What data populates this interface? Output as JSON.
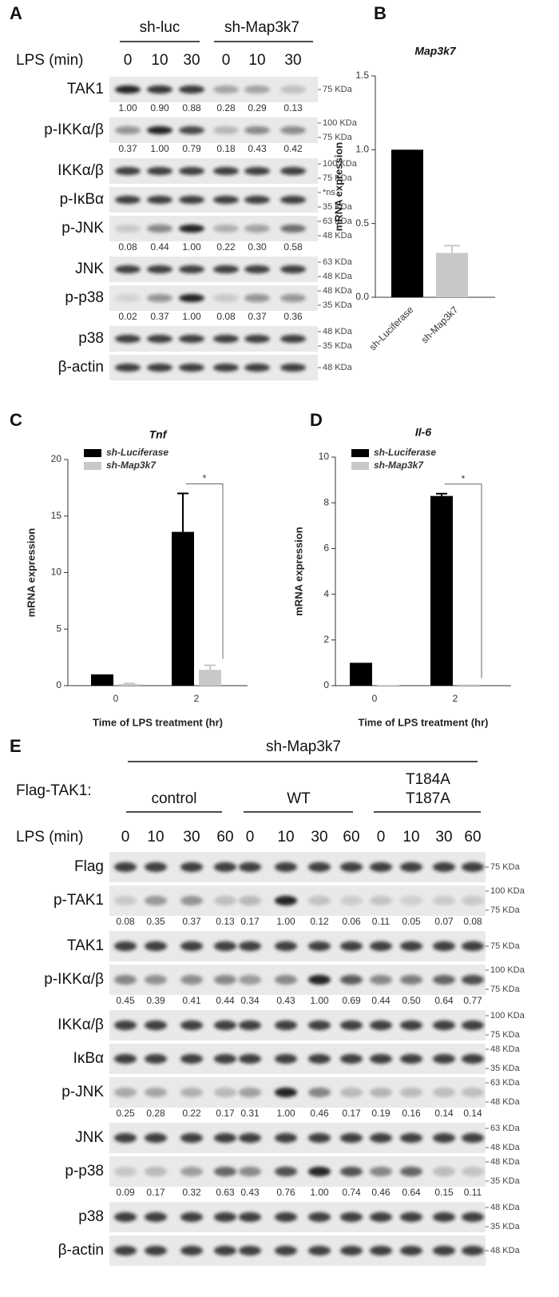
{
  "panel_labels": [
    "A",
    "B",
    "C",
    "D",
    "E"
  ],
  "blot_a": {
    "groups": [
      "sh-luc",
      "sh-Map3k7"
    ],
    "lps_label": "LPS (min)",
    "lanes": [
      "0",
      "10",
      "30",
      "0",
      "10",
      "30"
    ],
    "rows": [
      {
        "label": "TAK1",
        "quant": [
          "1.00",
          "0.90",
          "0.88",
          "0.28",
          "0.29",
          "0.13"
        ],
        "markers": [
          "75 KDa"
        ]
      },
      {
        "label": "p-IKKα/β",
        "quant": [
          "0.37",
          "1.00",
          "0.79",
          "0.18",
          "0.43",
          "0.42"
        ],
        "markers": [
          "100 KDa",
          "75 KDa"
        ]
      },
      {
        "label": "IKKα/β",
        "markers": [
          "100 KDa",
          "75 KDa"
        ]
      },
      {
        "label": "p-IκBα",
        "markers": [
          "*ns",
          "35 KDa"
        ]
      },
      {
        "label": "p-JNK",
        "quant": [
          "0.08",
          "0.44",
          "1.00",
          "0.22",
          "0.30",
          "0.58"
        ],
        "markers": [
          "63 KDa",
          "48 KDa"
        ]
      },
      {
        "label": "JNK",
        "markers": [
          "63 KDa",
          "48 KDa"
        ]
      },
      {
        "label": "p-p38",
        "quant": [
          "0.02",
          "0.37",
          "1.00",
          "0.08",
          "0.37",
          "0.36"
        ],
        "markers": [
          "48 KDa",
          "35 KDa"
        ]
      },
      {
        "label": "p38",
        "markers": [
          "48 KDa",
          "35 KDa"
        ]
      },
      {
        "label": "β-actin",
        "markers": [
          "48 KDa"
        ]
      }
    ]
  },
  "chart_data": [
    {
      "type": "bar",
      "title": "Map3k7",
      "ylabel": "mRNA expression",
      "categories": [
        "sh-Luciferase",
        "sh-Map3k7"
      ],
      "values": [
        1.0,
        0.3
      ],
      "errors": [
        null,
        0.05
      ],
      "colors": [
        "#000000",
        "#c8c8c8"
      ],
      "ylim": [
        0,
        1.5
      ],
      "yticks": [
        {
          "value": 0,
          "label": "0.0"
        },
        {
          "value": 0.5,
          "label": "0.5"
        },
        {
          "value": 1,
          "label": "1.0"
        },
        {
          "value": 1.5,
          "label": "1.5"
        }
      ]
    },
    {
      "type": "bar",
      "title": "Tnf",
      "ylabel": "mRNA expression",
      "xlabel": "Time of LPS treatment (hr)",
      "categories": [
        "0",
        "2"
      ],
      "series": [
        {
          "name": "sh-Luciferase",
          "color": "#000000",
          "values": [
            1,
            13.6
          ],
          "errors": [
            null,
            3.4
          ]
        },
        {
          "name": "sh-Map3k7",
          "color": "#c8c8c8",
          "values": [
            0.15,
            1.4
          ],
          "errors": [
            0.05,
            0.4
          ]
        }
      ],
      "ylim": [
        0,
        20
      ],
      "yticks": [
        0,
        5,
        10,
        15,
        20
      ],
      "annotation": "*"
    },
    {
      "type": "bar",
      "title": "Il-6",
      "ylabel": "mRNA expression",
      "xlabel": "Time of LPS treatment (hr)",
      "categories": [
        "0",
        "2"
      ],
      "series": [
        {
          "name": "sh-Luciferase",
          "color": "#000000",
          "values": [
            1,
            8.3
          ],
          "errors": [
            null,
            0.1
          ]
        },
        {
          "name": "sh-Map3k7",
          "color": "#c8c8c8",
          "values": [
            0.02,
            0.05
          ],
          "errors": [
            null,
            null
          ]
        }
      ],
      "ylim": [
        0,
        10
      ],
      "yticks": [
        0,
        2,
        4,
        6,
        8,
        10
      ],
      "annotation": "*"
    }
  ],
  "blot_e": {
    "header": "sh-Map3k7",
    "construct_label": "Flag-TAK1:",
    "groups": [
      [
        "control"
      ],
      [
        "WT"
      ],
      [
        "T184A",
        "T187A"
      ]
    ],
    "lps_label": "LPS (min)",
    "lanes": [
      "0",
      "10",
      "30",
      "60",
      "0",
      "10",
      "30",
      "60",
      "0",
      "10",
      "30",
      "60"
    ],
    "rows": [
      {
        "label": "Flag",
        "markers": [
          "75 KDa"
        ]
      },
      {
        "label": "p-TAK1",
        "quant": [
          "0.08",
          "0.35",
          "0.37",
          "0.13",
          "0.17",
          "1.00",
          "0.12",
          "0.06",
          "0.11",
          "0.05",
          "0.07",
          "0.08"
        ],
        "markers": [
          "100 KDa",
          "75 KDa"
        ]
      },
      {
        "label": "TAK1",
        "markers": [
          "75 KDa"
        ]
      },
      {
        "label": "p-IKKα/β",
        "quant": [
          "0.45",
          "0.39",
          "0.41",
          "0.44",
          "0.34",
          "0.43",
          "1.00",
          "0.69",
          "0.44",
          "0.50",
          "0.64",
          "0.77"
        ],
        "markers": [
          "100 KDa",
          "75 KDa"
        ]
      },
      {
        "label": "IKKα/β",
        "markers": [
          "100 KDa",
          "75 KDa"
        ]
      },
      {
        "label": "IκBα",
        "markers": [
          "48 KDa",
          "35 KDa"
        ]
      },
      {
        "label": "p-JNK",
        "quant": [
          "0.25",
          "0.28",
          "0.22",
          "0.17",
          "0.31",
          "1.00",
          "0.46",
          "0.17",
          "0.19",
          "0.16",
          "0.14",
          "0.14"
        ],
        "markers": [
          "63 KDa",
          "48 KDa"
        ]
      },
      {
        "label": "JNK",
        "markers": [
          "63 KDa",
          "48 KDa"
        ]
      },
      {
        "label": "p-p38",
        "quant": [
          "0.09",
          "0.17",
          "0.32",
          "0.63",
          "0.43",
          "0.76",
          "1.00",
          "0.74",
          "0.46",
          "0.64",
          "0.15",
          "0.11"
        ],
        "markers": [
          "48 KDa",
          "35 KDa"
        ]
      },
      {
        "label": "p38",
        "markers": [
          "48 KDa",
          "35 KDa"
        ]
      },
      {
        "label": "β-actin",
        "markers": [
          "48 KDa"
        ]
      }
    ]
  }
}
